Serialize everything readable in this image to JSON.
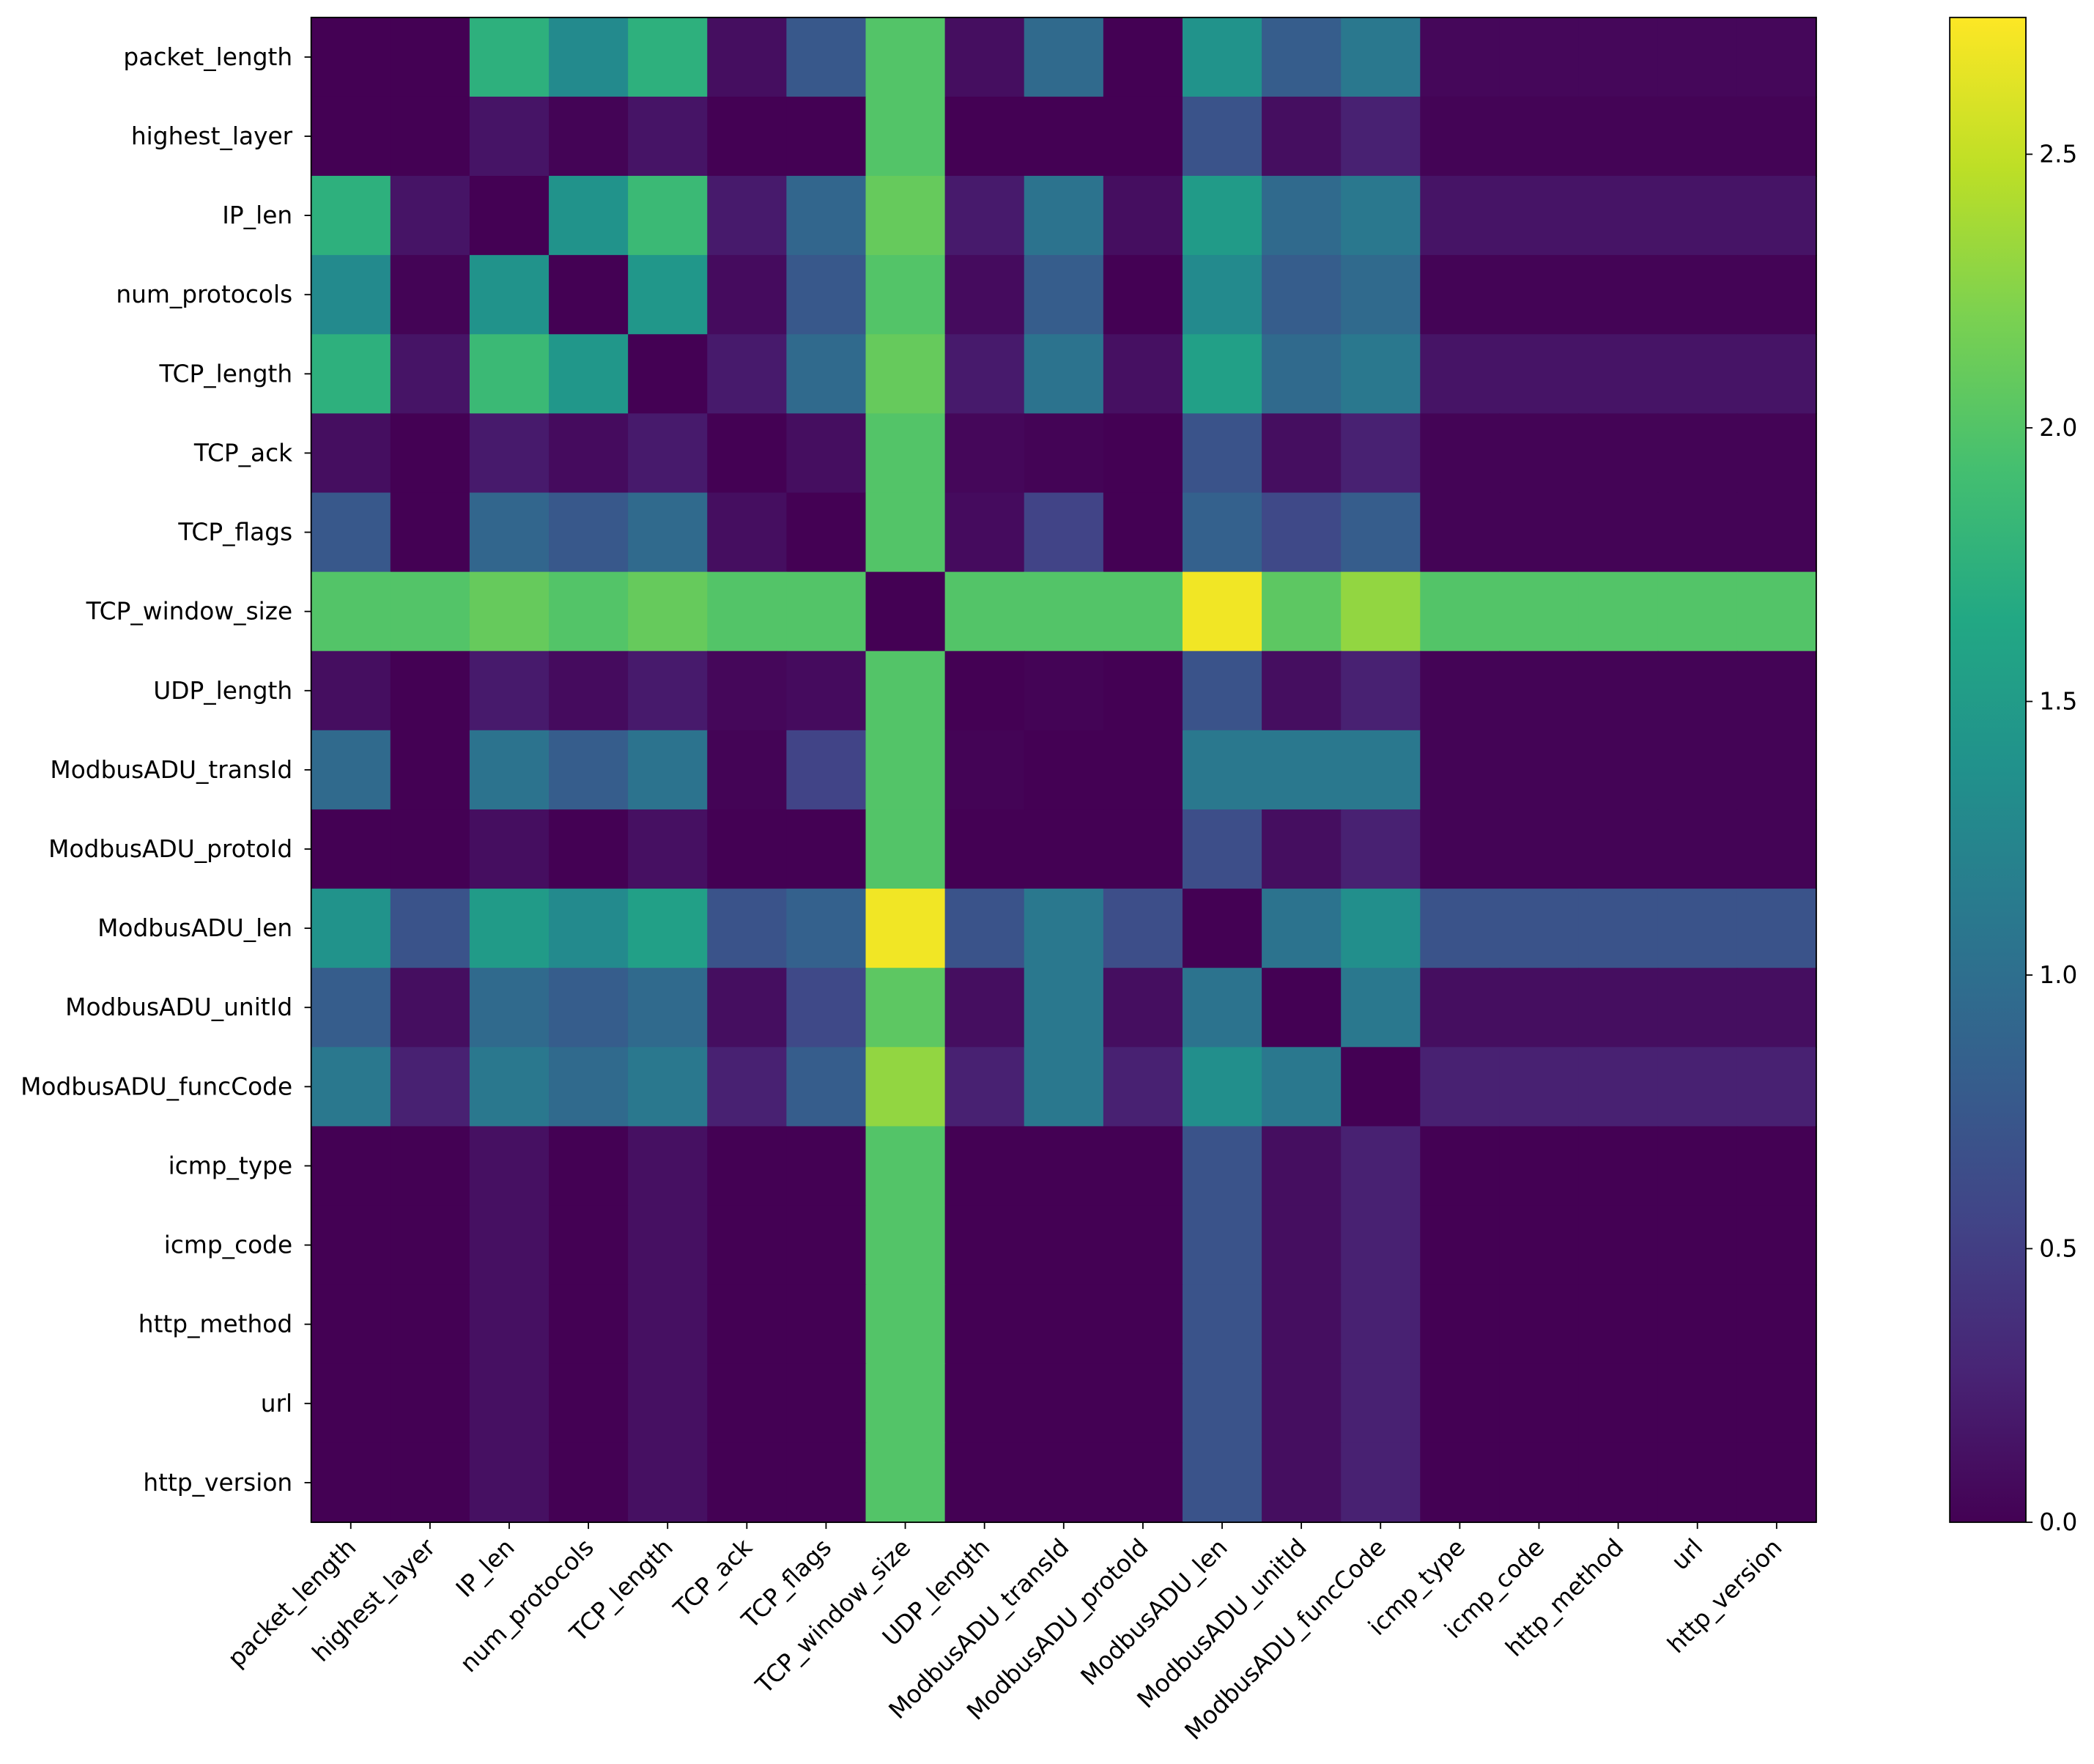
{
  "chart_data": {
    "type": "heatmap",
    "title": "",
    "xlabel": "",
    "ylabel": "",
    "features": [
      "packet_length",
      "highest_layer",
      "IP_len",
      "num_protocols",
      "TCP_length",
      "TCP_ack",
      "TCP_flags",
      "TCP_window_size",
      "UDP_length",
      "ModbusADU_transId",
      "ModbusADU_protoId",
      "ModbusADU_len",
      "ModbusADU_unitId",
      "ModbusADU_funcCode",
      "icmp_type",
      "icmp_code",
      "http_method",
      "url",
      "http_version"
    ],
    "colormap": "viridis",
    "colorbar": {
      "min": 0.0,
      "max": 2.75,
      "ticks": [
        0.0,
        0.5,
        1.0,
        1.5,
        2.0,
        2.5
      ],
      "tick_labels": [
        "0.0",
        "0.5",
        "1.0",
        "1.5",
        "2.0",
        "2.5"
      ]
    },
    "values": [
      [
        0.0,
        0.0,
        1.75,
        1.3,
        1.75,
        0.1,
        0.75,
        2.0,
        0.1,
        0.95,
        0.0,
        1.4,
        0.8,
        1.1,
        0.05,
        0.05,
        0.05,
        0.05,
        0.05
      ],
      [
        0.0,
        0.0,
        0.15,
        0.02,
        0.15,
        0.0,
        0.0,
        2.0,
        0.0,
        0.0,
        0.0,
        0.7,
        0.1,
        0.25,
        0.02,
        0.02,
        0.02,
        0.02,
        0.02
      ],
      [
        1.75,
        0.15,
        0.0,
        1.4,
        1.85,
        0.2,
        0.9,
        2.1,
        0.2,
        1.05,
        0.1,
        1.5,
        0.95,
        1.1,
        0.15,
        0.15,
        0.15,
        0.15,
        0.15
      ],
      [
        1.3,
        0.02,
        1.4,
        0.0,
        1.45,
        0.08,
        0.75,
        2.0,
        0.08,
        0.8,
        0.0,
        1.3,
        0.8,
        0.95,
        0.02,
        0.02,
        0.02,
        0.02,
        0.02
      ],
      [
        1.75,
        0.15,
        1.85,
        1.45,
        0.0,
        0.2,
        0.95,
        2.1,
        0.2,
        1.05,
        0.12,
        1.55,
        0.95,
        1.1,
        0.15,
        0.15,
        0.15,
        0.15,
        0.15
      ],
      [
        0.1,
        0.0,
        0.2,
        0.08,
        0.2,
        0.0,
        0.1,
        2.0,
        0.05,
        0.02,
        0.0,
        0.7,
        0.1,
        0.25,
        0.02,
        0.02,
        0.02,
        0.02,
        0.02
      ],
      [
        0.75,
        0.0,
        0.9,
        0.75,
        0.95,
        0.1,
        0.0,
        2.0,
        0.08,
        0.55,
        0.0,
        0.85,
        0.6,
        0.8,
        0.02,
        0.02,
        0.02,
        0.02,
        0.02
      ],
      [
        2.0,
        2.0,
        2.1,
        2.0,
        2.1,
        2.0,
        2.0,
        0.0,
        2.0,
        2.0,
        2.0,
        2.7,
        2.05,
        2.3,
        2.0,
        2.0,
        2.0,
        2.0,
        2.0
      ],
      [
        0.1,
        0.0,
        0.2,
        0.08,
        0.2,
        0.05,
        0.08,
        2.0,
        0.0,
        0.02,
        0.0,
        0.7,
        0.1,
        0.25,
        0.02,
        0.02,
        0.02,
        0.02,
        0.02
      ],
      [
        0.95,
        0.0,
        1.05,
        0.8,
        1.05,
        0.02,
        0.55,
        2.0,
        0.02,
        0.0,
        0.0,
        1.1,
        1.1,
        1.1,
        0.02,
        0.02,
        0.02,
        0.02,
        0.02
      ],
      [
        0.0,
        0.0,
        0.1,
        0.0,
        0.12,
        0.0,
        0.0,
        2.0,
        0.0,
        0.0,
        0.0,
        0.65,
        0.1,
        0.25,
        0.02,
        0.02,
        0.02,
        0.02,
        0.02
      ],
      [
        1.4,
        0.7,
        1.5,
        1.3,
        1.55,
        0.7,
        0.85,
        2.7,
        0.7,
        1.1,
        0.65,
        0.0,
        1.05,
        1.35,
        0.7,
        0.7,
        0.7,
        0.7,
        0.7
      ],
      [
        0.8,
        0.1,
        0.95,
        0.8,
        0.95,
        0.1,
        0.6,
        2.05,
        0.1,
        1.1,
        0.1,
        1.05,
        0.0,
        1.1,
        0.1,
        0.1,
        0.1,
        0.1,
        0.1
      ],
      [
        1.1,
        0.25,
        1.1,
        0.95,
        1.1,
        0.25,
        0.8,
        2.3,
        0.25,
        1.1,
        0.25,
        1.35,
        1.1,
        0.0,
        0.25,
        0.25,
        0.25,
        0.25,
        0.25
      ],
      [
        0.0,
        0.0,
        0.12,
        0.0,
        0.12,
        0.0,
        0.0,
        2.0,
        0.0,
        0.0,
        0.0,
        0.7,
        0.1,
        0.25,
        0.0,
        0.0,
        0.0,
        0.0,
        0.0
      ],
      [
        0.0,
        0.0,
        0.12,
        0.0,
        0.12,
        0.0,
        0.0,
        2.0,
        0.0,
        0.0,
        0.0,
        0.7,
        0.1,
        0.25,
        0.0,
        0.0,
        0.0,
        0.0,
        0.0
      ],
      [
        0.0,
        0.0,
        0.12,
        0.0,
        0.12,
        0.0,
        0.0,
        2.0,
        0.0,
        0.0,
        0.0,
        0.7,
        0.1,
        0.25,
        0.0,
        0.0,
        0.0,
        0.0,
        0.0
      ],
      [
        0.0,
        0.0,
        0.12,
        0.0,
        0.12,
        0.0,
        0.0,
        2.0,
        0.0,
        0.0,
        0.0,
        0.7,
        0.1,
        0.25,
        0.0,
        0.0,
        0.0,
        0.0,
        0.0
      ],
      [
        0.0,
        0.0,
        0.12,
        0.0,
        0.12,
        0.0,
        0.0,
        2.0,
        0.0,
        0.0,
        0.0,
        0.7,
        0.1,
        0.25,
        0.0,
        0.0,
        0.0,
        0.0,
        0.0
      ]
    ]
  }
}
